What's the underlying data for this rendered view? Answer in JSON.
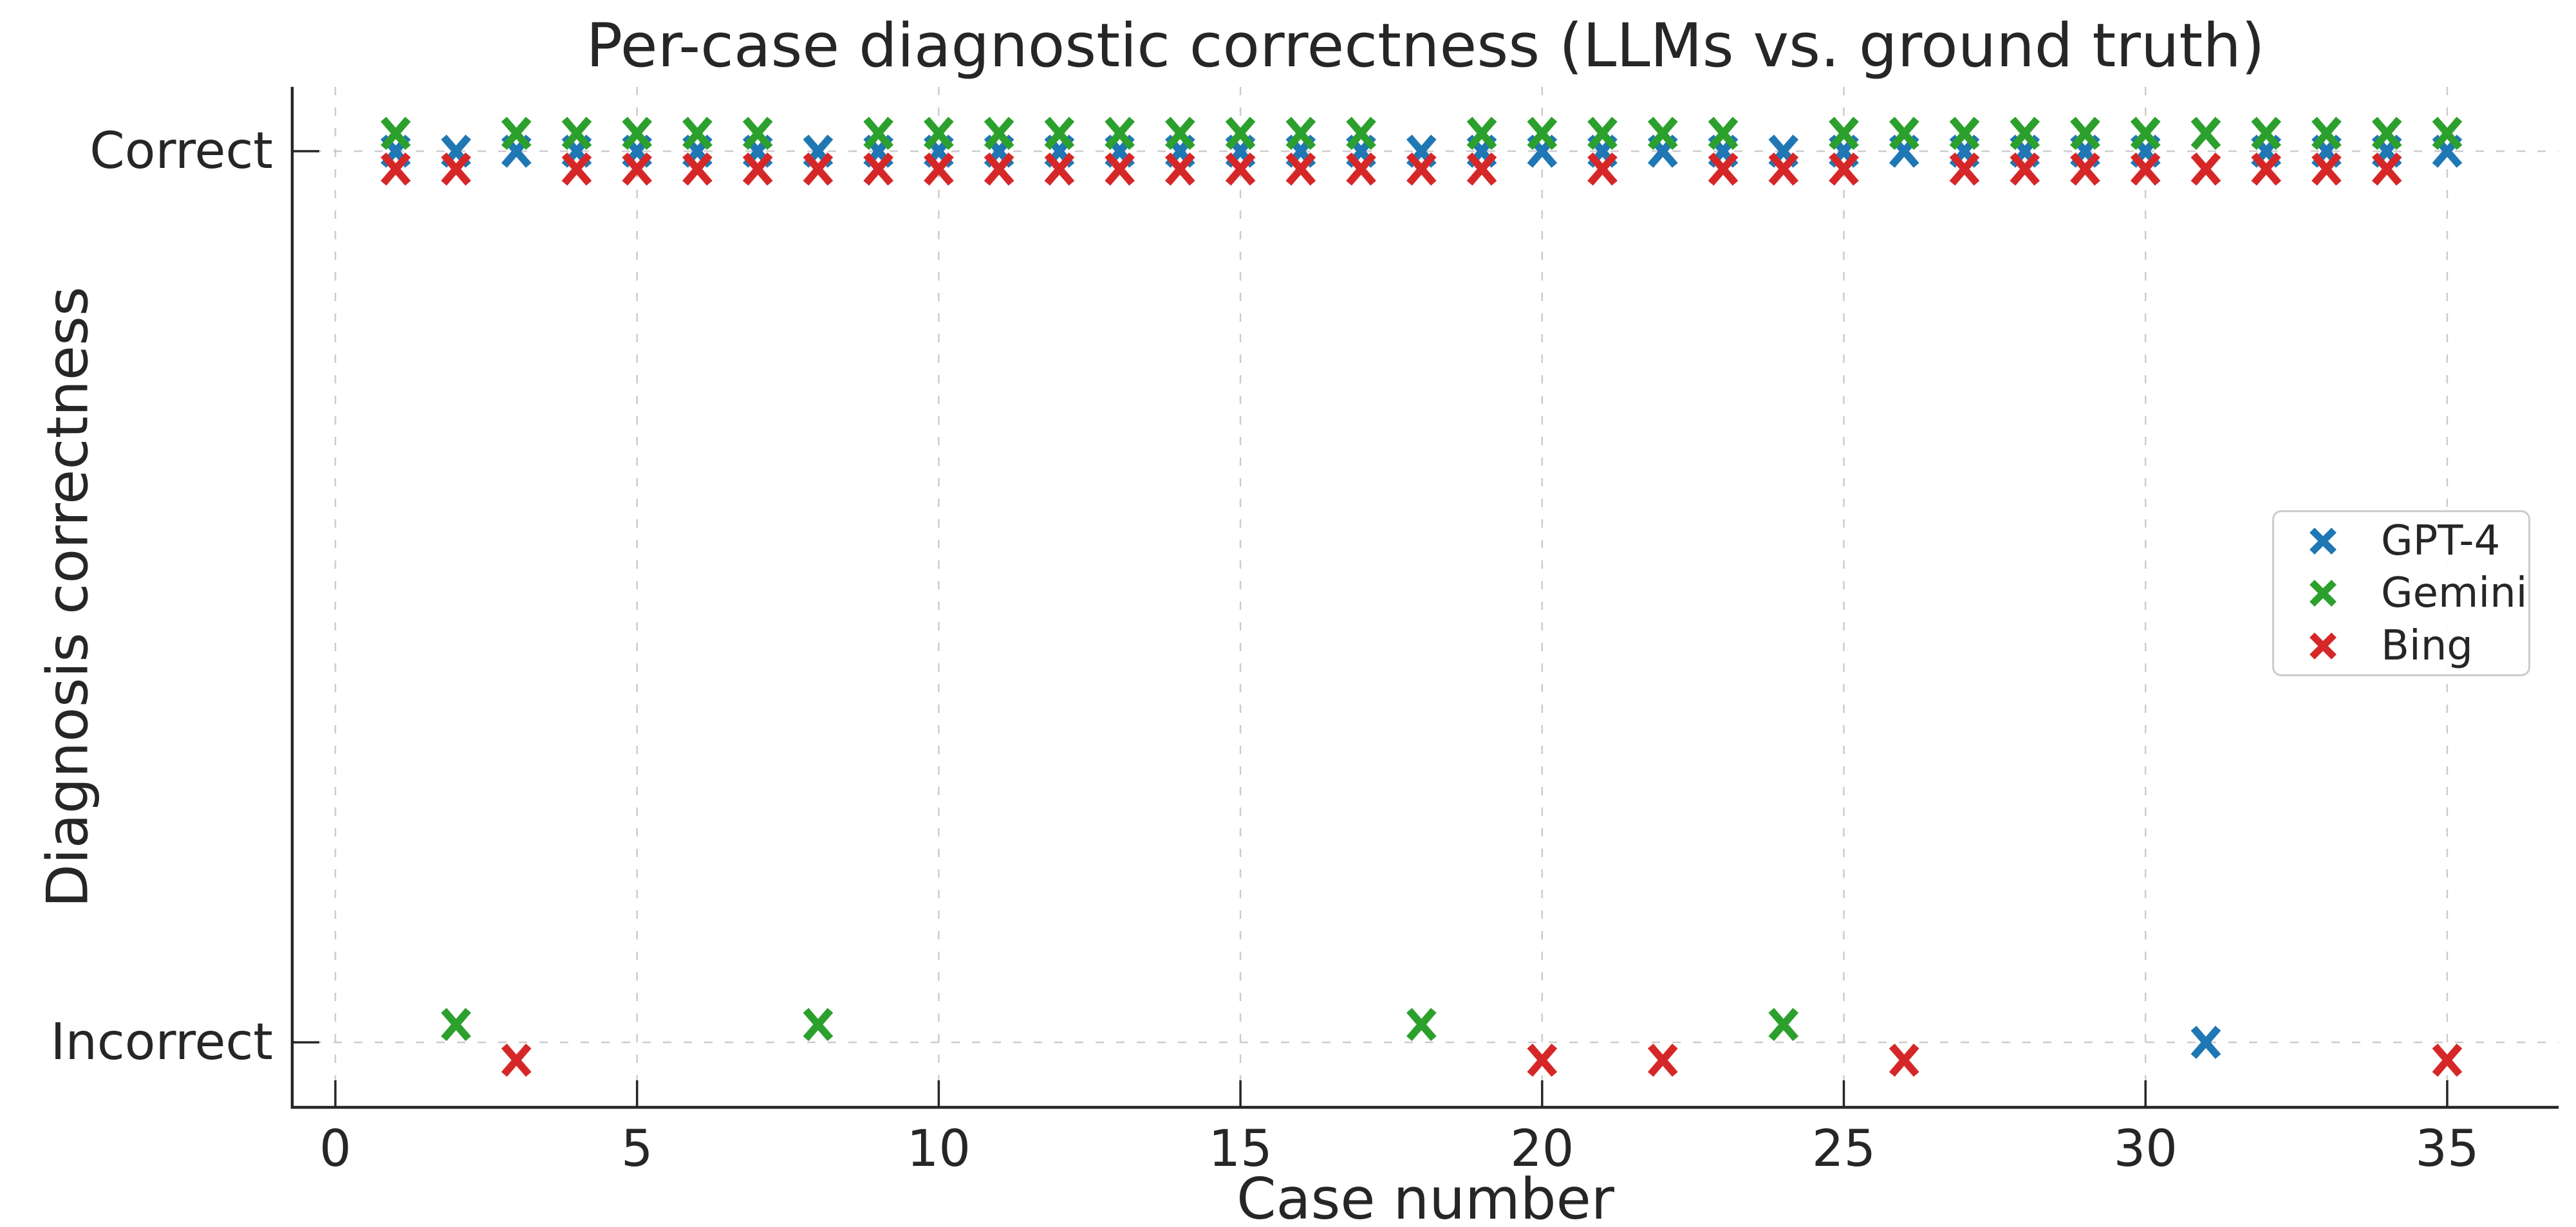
{
  "chart_data": {
    "type": "scatter",
    "title": "Per-case diagnostic correctness (LLMs vs. ground truth)",
    "xlabel": "Case number",
    "ylabel": "Diagnosis correctness",
    "x_ticks": [
      0,
      5,
      10,
      15,
      20,
      25,
      30,
      35
    ],
    "y_ticks": [
      {
        "label": "Correct",
        "value": 1
      },
      {
        "label": "Incorrect",
        "value": 0
      }
    ],
    "xlim": [
      -0.7,
      36.6
    ],
    "ylim": [
      -0.073,
      1.072
    ],
    "grid": {
      "visible": true,
      "linestyle": "dashed",
      "color": "#cccccc"
    },
    "legend": {
      "position": "center-right",
      "frame_color": "#cccccc"
    },
    "marker": "x",
    "cases": [
      1,
      2,
      3,
      4,
      5,
      6,
      7,
      8,
      9,
      10,
      11,
      12,
      13,
      14,
      15,
      16,
      17,
      18,
      19,
      20,
      21,
      22,
      23,
      24,
      25,
      26,
      27,
      28,
      29,
      30,
      31,
      32,
      33,
      34,
      35
    ],
    "value_legend": {
      "1": "Correct",
      "0": "Incorrect"
    },
    "series": [
      {
        "name": "GPT-4",
        "color": "#1f77b4",
        "y_offset": 0.0,
        "incorrect_cases": [
          31
        ],
        "values": [
          1,
          1,
          1,
          1,
          1,
          1,
          1,
          1,
          1,
          1,
          1,
          1,
          1,
          1,
          1,
          1,
          1,
          1,
          1,
          1,
          1,
          1,
          1,
          1,
          1,
          1,
          1,
          1,
          1,
          1,
          0,
          1,
          1,
          1,
          1
        ]
      },
      {
        "name": "Gemini",
        "color": "#2ca02c",
        "y_offset": 0.02,
        "incorrect_cases": [
          2,
          8,
          18,
          24
        ],
        "values": [
          1,
          0,
          1,
          1,
          1,
          1,
          1,
          0,
          1,
          1,
          1,
          1,
          1,
          1,
          1,
          1,
          1,
          0,
          1,
          1,
          1,
          1,
          1,
          0,
          1,
          1,
          1,
          1,
          1,
          1,
          1,
          1,
          1,
          1,
          1
        ]
      },
      {
        "name": "Bing",
        "color": "#d62728",
        "y_offset": -0.02,
        "incorrect_cases": [
          3,
          20,
          22,
          26,
          35
        ],
        "values": [
          1,
          1,
          0,
          1,
          1,
          1,
          1,
          1,
          1,
          1,
          1,
          1,
          1,
          1,
          1,
          1,
          1,
          1,
          1,
          0,
          1,
          0,
          1,
          1,
          1,
          0,
          1,
          1,
          1,
          1,
          1,
          1,
          1,
          1,
          0
        ]
      }
    ]
  }
}
